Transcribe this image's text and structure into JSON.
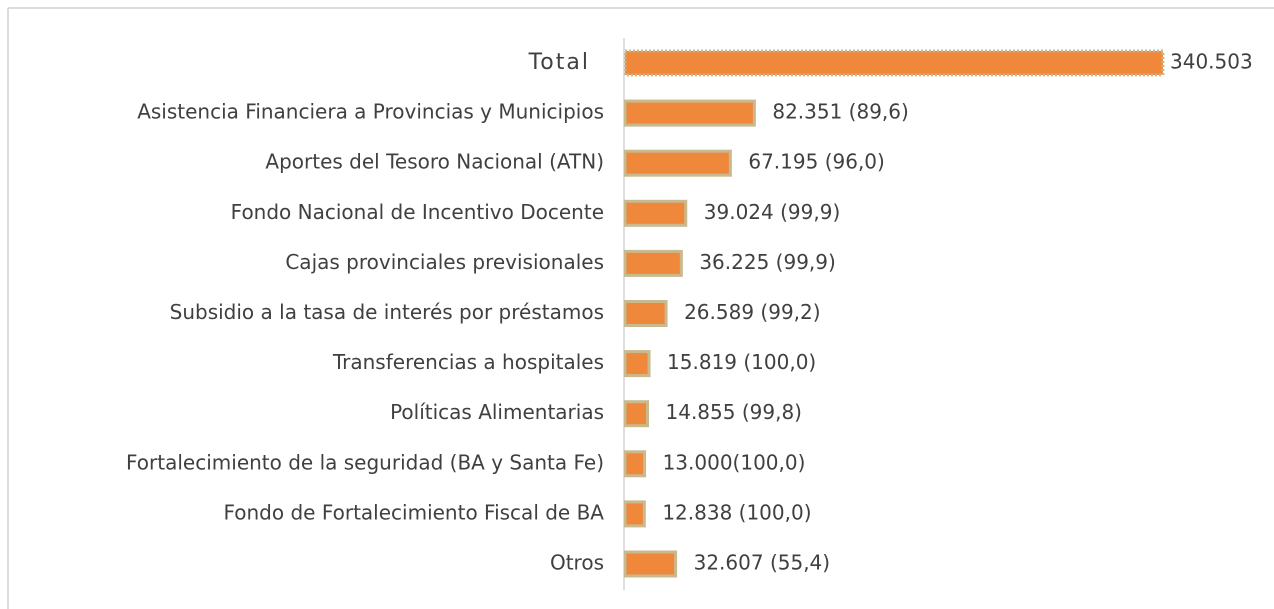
{
  "chart_data": {
    "type": "bar",
    "orientation": "horizontal",
    "categories": [
      "Total",
      "Asistencia Financiera a Provincias y Municipios",
      "Aportes del Tesoro Nacional (ATN)",
      "Fondo Nacional de Incentivo Docente",
      "Cajas provinciales previsionales",
      "Subsidio a la tasa de interés por préstamos",
      "Transferencias a hospitales",
      "Políticas Alimentarias",
      "Fortalecimiento de la seguridad (BA y Santa Fe)",
      "Fondo de Fortalecimiento Fiscal de BA",
      "Otros"
    ],
    "values": [
      340503,
      82351,
      67195,
      39024,
      36225,
      26589,
      15819,
      14855,
      13000,
      12838,
      32607
    ],
    "value_labels": [
      "340.503",
      "82.351 (89,6)",
      "67.195 (96,0)",
      "39.024 (99,9)",
      "36.225 (99,9)",
      "26.589 (99,2)",
      "15.819 (100,0)",
      "14.855 (99,8)",
      "13.000(100,0)",
      "12.838 (100,0)",
      "32.607 (55,4)"
    ],
    "color": "#f0883c",
    "edge_color": "#c9b98f",
    "xlim": [
      0,
      340503
    ]
  }
}
